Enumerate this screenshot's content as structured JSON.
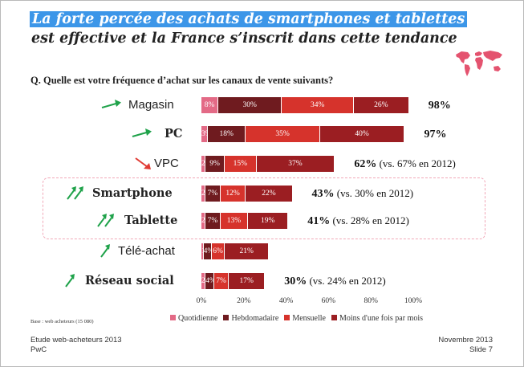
{
  "slide": {
    "title_highlight": "La forte percée des achats de smartphones et tablettes",
    "title_line2": "est effective et la France s’inscrit dans cette tendance",
    "question": "Q. Quelle est votre fréquence d’achat sur les canaux de vente suivants?",
    "base_note": "Base : web acheteurs (15 080)",
    "footer_left_line1": "Etude web-acheteurs 2013",
    "footer_left_line2": "PwC",
    "footer_right_line1": "Novembre 2013",
    "footer_right_line2": "Slide 7"
  },
  "colors": {
    "highlight": "#3c96e8",
    "series": [
      "#e36a86",
      "#6f1b1f",
      "#d6332c",
      "#9b1e22"
    ],
    "arrow": "#1fa24a",
    "arrow_down": "#e03a33",
    "dash": "#f1a8b8",
    "map": "#e4536f"
  },
  "chart_data": {
    "type": "bar",
    "orientation": "horizontal",
    "stacked": true,
    "categories": [
      "Magasin",
      "PC",
      "VPC",
      "Smartphone",
      "Tablette",
      "Télé-achat",
      "Réseau social"
    ],
    "category_trend": [
      "up-right",
      "up-right",
      "down-right",
      "double-up",
      "double-up",
      "up",
      "up"
    ],
    "series": [
      {
        "name": "Quotidienne",
        "values": [
          8,
          3,
          2,
          2,
          2,
          1,
          2
        ],
        "labels": [
          "8%",
          "3%",
          "2%",
          "2%",
          "2%",
          "1%",
          "2%"
        ]
      },
      {
        "name": "Hebdomadaire",
        "values": [
          30,
          18,
          9,
          7,
          7,
          4,
          4
        ],
        "labels": [
          "30%",
          "18%",
          "9%",
          "7%",
          "7%",
          "4%",
          "4%"
        ]
      },
      {
        "name": "Mensuelle",
        "values": [
          34,
          35,
          15,
          12,
          13,
          6,
          7
        ],
        "labels": [
          "34%",
          "35%",
          "15%",
          "12%",
          "13%",
          "6%",
          "7%"
        ]
      },
      {
        "name": "Moins d'une fois par mois",
        "values": [
          26,
          40,
          37,
          22,
          19,
          21,
          17
        ],
        "labels": [
          "26%",
          "40%",
          "37%",
          "22%",
          "19%",
          "21%",
          "17%"
        ]
      }
    ],
    "totals": [
      "98%",
      "97%",
      "62%",
      "43%",
      "41%",
      "",
      "30%"
    ],
    "comparisons": [
      "",
      "",
      "(vs. 67% en 2012)",
      "(vs. 30% en 2012)",
      "(vs. 28% en 2012)",
      "",
      "(vs. 24% en 2012)"
    ],
    "x_ticks": [
      "0%",
      "20%",
      "40%",
      "60%",
      "80%",
      "100%"
    ],
    "xlim": [
      0,
      100
    ],
    "legend_position": "bottom",
    "grid": false
  }
}
